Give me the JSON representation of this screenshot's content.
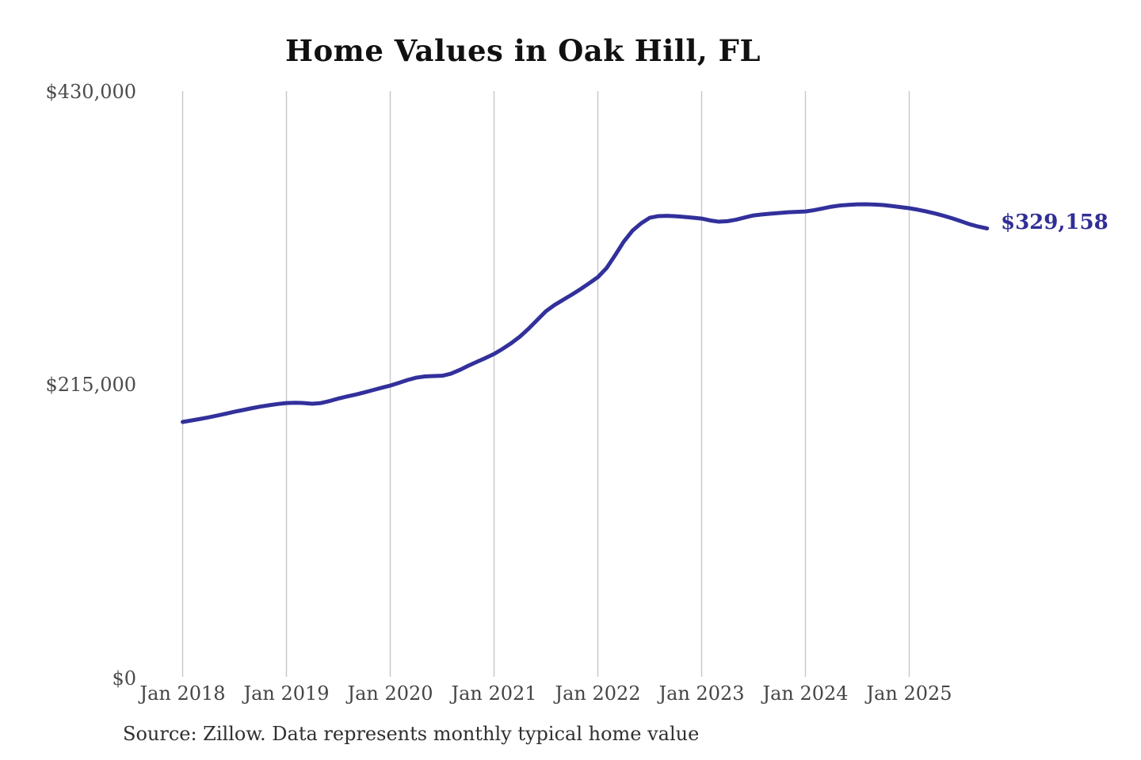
{
  "header": {
    "title": "Home Values in Oak Hill, FL"
  },
  "footer": {
    "source": "Source: Zillow. Data represents monthly typical home value"
  },
  "chart_data": {
    "type": "line",
    "title": "Home Values in Oak Hill, FL",
    "xlabel": "",
    "ylabel": "",
    "ylim": [
      0,
      430000
    ],
    "grid": "vertical-only",
    "legend": "none",
    "line_color": "#32309B",
    "grid_color": "#C9C9C9",
    "end_label": "$329,158",
    "end_value": 329158,
    "y_tick_labels": [
      "$430,000",
      "$215,000",
      "$0"
    ],
    "y_tick_values": [
      430000,
      215000,
      0
    ],
    "x_tick_labels": [
      "Jan 2018",
      "Jan 2019",
      "Jan 2020",
      "Jan 2021",
      "Jan 2022",
      "Jan 2023",
      "Jan 2024",
      "Jan 2025"
    ],
    "series": [
      {
        "name": "Monthly typical home value",
        "x": [
          "2018-01",
          "2018-02",
          "2018-03",
          "2018-04",
          "2018-05",
          "2018-06",
          "2018-07",
          "2018-08",
          "2018-09",
          "2018-10",
          "2018-11",
          "2018-12",
          "2019-01",
          "2019-02",
          "2019-03",
          "2019-04",
          "2019-05",
          "2019-06",
          "2019-07",
          "2019-08",
          "2019-09",
          "2019-10",
          "2019-11",
          "2019-12",
          "2020-01",
          "2020-02",
          "2020-03",
          "2020-04",
          "2020-05",
          "2020-06",
          "2020-07",
          "2020-08",
          "2020-09",
          "2020-10",
          "2020-11",
          "2020-12",
          "2021-01",
          "2021-02",
          "2021-03",
          "2021-04",
          "2021-05",
          "2021-06",
          "2021-07",
          "2021-08",
          "2021-09",
          "2021-10",
          "2021-11",
          "2021-12",
          "2022-01",
          "2022-02",
          "2022-03",
          "2022-04",
          "2022-05",
          "2022-06",
          "2022-07",
          "2022-08",
          "2022-09",
          "2022-10",
          "2022-11",
          "2022-12",
          "2023-01",
          "2023-02",
          "2023-03",
          "2023-04",
          "2023-05",
          "2023-06",
          "2023-07",
          "2023-08",
          "2023-09",
          "2023-10",
          "2023-11",
          "2023-12",
          "2024-01",
          "2024-02",
          "2024-03",
          "2024-04",
          "2024-05",
          "2024-06",
          "2024-07",
          "2024-08",
          "2024-09",
          "2024-10",
          "2024-11",
          "2024-12",
          "2025-01",
          "2025-02",
          "2025-03",
          "2025-04",
          "2025-05",
          "2025-06",
          "2025-07",
          "2025-08",
          "2025-09",
          "2025-10"
        ],
        "values": [
          187100,
          188200,
          189300,
          190500,
          191800,
          193200,
          194600,
          195900,
          197200,
          198400,
          199400,
          200300,
          201000,
          201200,
          201000,
          200500,
          201000,
          202500,
          204300,
          205800,
          207200,
          208800,
          210500,
          212200,
          213800,
          215800,
          217900,
          219600,
          220500,
          220800,
          221000,
          222500,
          225200,
          228300,
          231200,
          234000,
          237000,
          240800,
          245000,
          249800,
          255600,
          262000,
          268400,
          273000,
          276800,
          280600,
          284600,
          288900,
          293400,
          300000,
          309500,
          319500,
          327500,
          332900,
          337000,
          338200,
          338400,
          338100,
          337600,
          337000,
          336400,
          335000,
          334100,
          334500,
          335600,
          337200,
          338700,
          339400,
          340000,
          340500,
          341000,
          341300,
          341600,
          342600,
          343800,
          345100,
          346000,
          346500,
          346800,
          346900,
          346700,
          346300,
          345600,
          344800,
          344000,
          342900,
          341600,
          340100,
          338400,
          336500,
          334400,
          332200,
          330500,
          329158
        ]
      }
    ],
    "source": "Source: Zillow. Data represents monthly typical home value"
  }
}
